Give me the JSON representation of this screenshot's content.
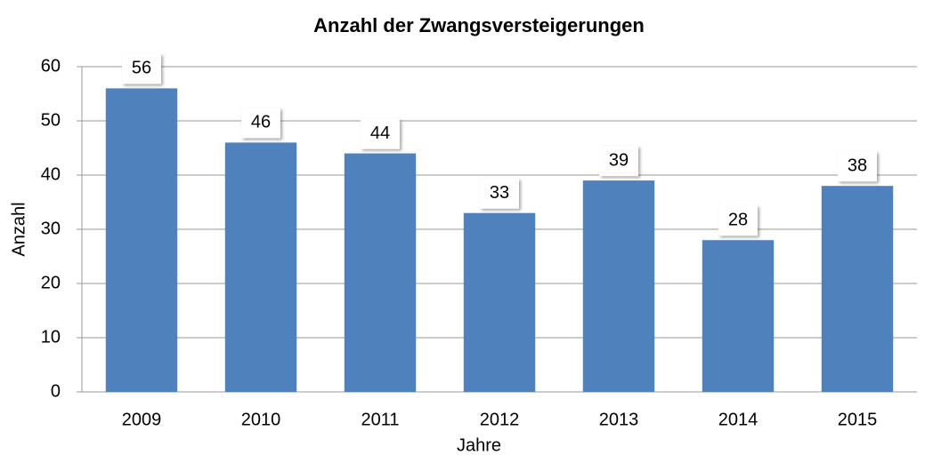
{
  "chart_data": {
    "type": "bar",
    "title": "Anzahl der Zwangsversteigerungen",
    "x_label": "Jahre",
    "y_label": "Anzahl",
    "categories": [
      "2009",
      "2010",
      "2011",
      "2012",
      "2013",
      "2014",
      "2015"
    ],
    "values": [
      56,
      46,
      44,
      33,
      39,
      28,
      38
    ],
    "color": "#4f81bd",
    "ylim": [
      0,
      60
    ],
    "yticks": [
      0,
      10,
      20,
      30,
      40,
      50,
      60
    ],
    "grid": true
  }
}
